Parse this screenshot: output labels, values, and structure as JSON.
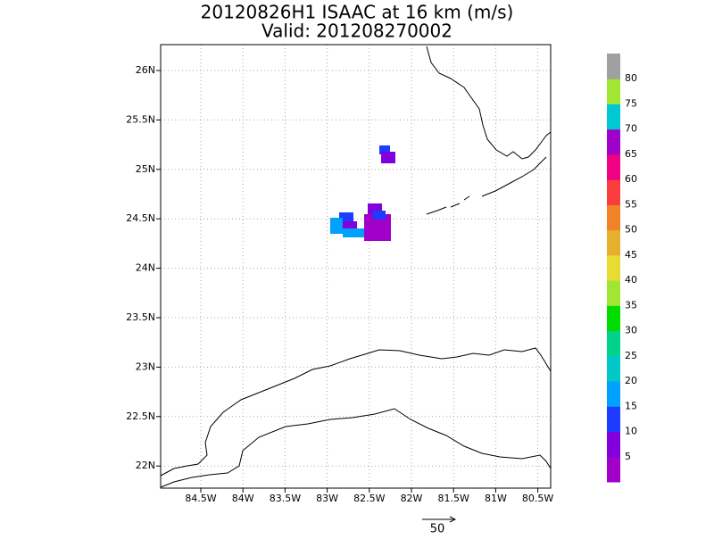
{
  "title": [
    "20120826H1 ISAAC at 16 km (m/s)",
    "Valid: 201208270002"
  ],
  "lon_ticks": [
    "84.5W",
    "84W",
    "83.5W",
    "83W",
    "82.5W",
    "82W",
    "81.5W",
    "81W",
    "80.5W"
  ],
  "lat_ticks": [
    "26N",
    "25.5N",
    "25N",
    "24.5N",
    "24N",
    "23.5N",
    "23N",
    "22.5N",
    "22N"
  ],
  "colorbar": {
    "levels": [
      5,
      10,
      15,
      20,
      25,
      30,
      35,
      40,
      45,
      50,
      55,
      60,
      65,
      70,
      75,
      80
    ],
    "colors": [
      "#a000c8",
      "#8200dc",
      "#1e3cff",
      "#00a0ff",
      "#00c8c8",
      "#00d28c",
      "#00dc00",
      "#a0e632",
      "#e6dc32",
      "#e6af2d",
      "#f08228",
      "#fa3c3c",
      "#f00082",
      "#a000c8",
      "#00c8d2",
      "#a0e632",
      "#a0a0a0"
    ]
  },
  "vector_scale": "50"
}
